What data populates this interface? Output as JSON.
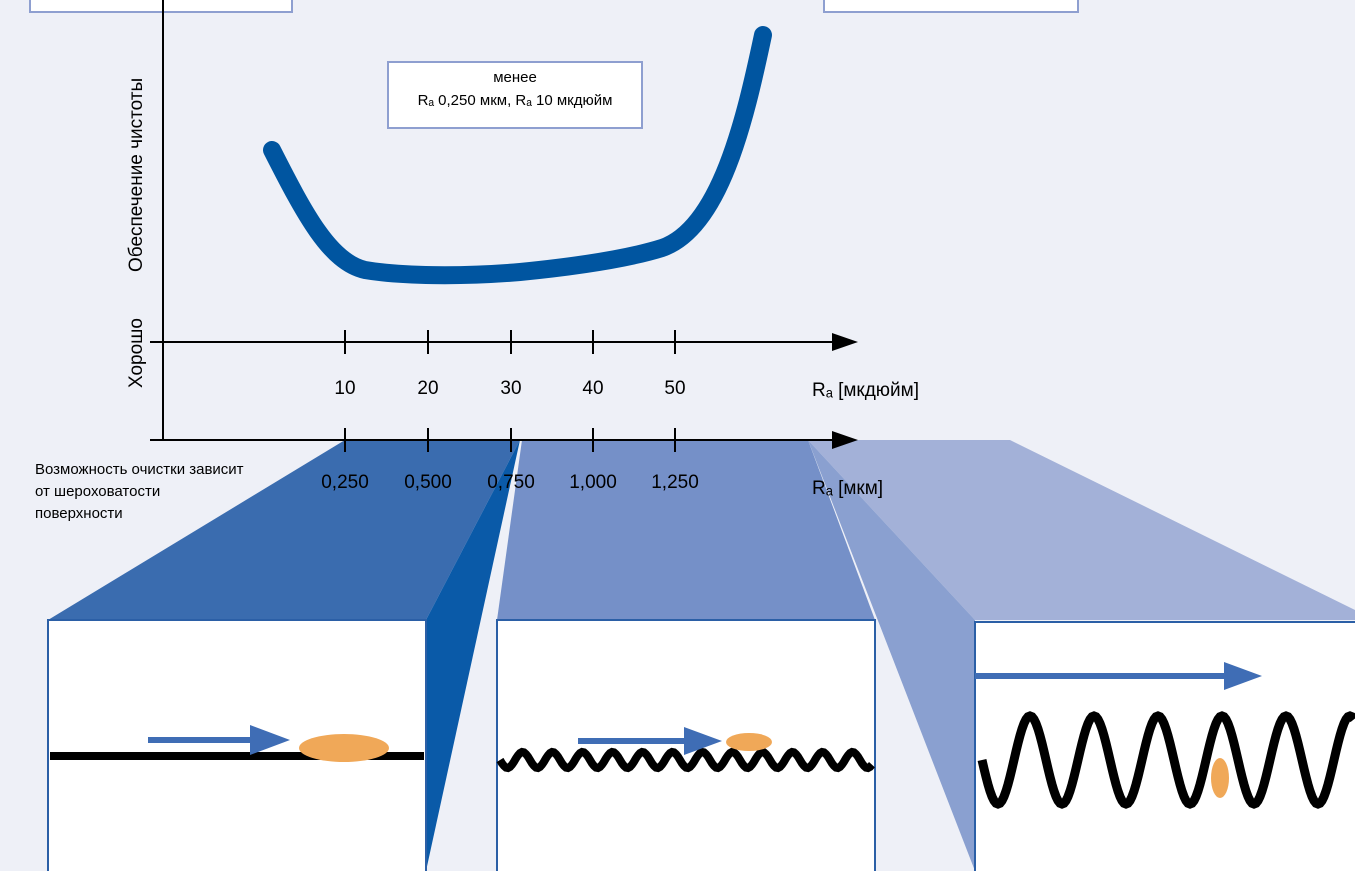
{
  "y_axis": {
    "label_good": "Хорошо",
    "label": "Обеспечение чистоты"
  },
  "note_box": {
    "line1": "менее",
    "line2": "Rₐ 0,250 мкм, Rₐ 10 мкдюйм"
  },
  "axis_microinch": {
    "ticks": [
      "10",
      "20",
      "30",
      "40",
      "50"
    ],
    "label": "Rₐ [мкдюйм]"
  },
  "axis_micrometer": {
    "ticks": [
      "0,250",
      "0,500",
      "0,750",
      "1,000",
      "1,250"
    ],
    "label": "Rₐ [мкм]"
  },
  "caption": [
    "Возможность очистки зависит",
    "от шероховатости",
    "поверхности"
  ]
}
